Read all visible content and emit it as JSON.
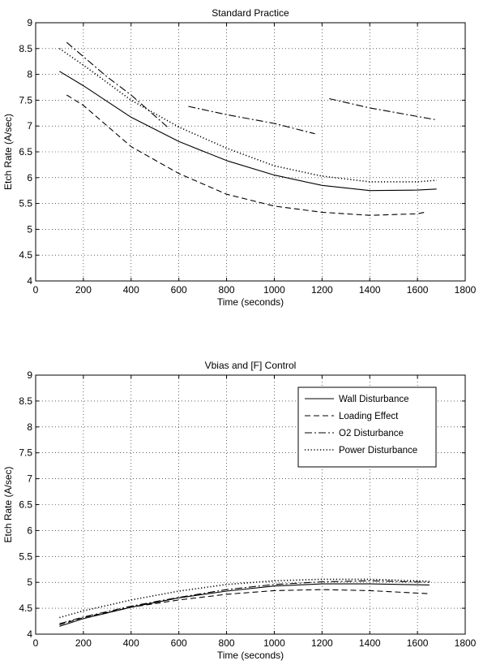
{
  "chart_data": [
    {
      "type": "line",
      "title": "Standard Practice",
      "xlabel": "Time (seconds)",
      "ylabel": "Etch Rate (A/sec)",
      "xlim": [
        0,
        1800
      ],
      "ylim": [
        4,
        9
      ],
      "xticks": [
        "0",
        "200",
        "400",
        "600",
        "800",
        "1000",
        "1200",
        "1400",
        "1600",
        "1800"
      ],
      "yticks": [
        "4",
        "4.5",
        "5",
        "5.5",
        "6",
        "6.5",
        "7",
        "7.5",
        "8",
        "8.5",
        "9"
      ],
      "grid": true,
      "legend": "none",
      "series": [
        {
          "name": "Wall Disturbance",
          "style": "solid",
          "segments": [
            [
              [
                100,
                8.06
              ],
              [
                200,
                7.78
              ],
              [
                400,
                7.17
              ],
              [
                600,
                6.7
              ],
              [
                800,
                6.33
              ],
              [
                1000,
                6.05
              ],
              [
                1200,
                5.85
              ],
              [
                1400,
                5.75
              ],
              [
                1600,
                5.76
              ],
              [
                1680,
                5.78
              ]
            ]
          ]
        },
        {
          "name": "Loading Effect",
          "style": "dashed",
          "segments": [
            [
              [
                130,
                7.6
              ],
              [
                200,
                7.4
              ],
              [
                400,
                6.6
              ],
              [
                600,
                6.08
              ],
              [
                800,
                5.68
              ],
              [
                1000,
                5.45
              ],
              [
                1200,
                5.33
              ],
              [
                1400,
                5.27
              ],
              [
                1600,
                5.3
              ],
              [
                1630,
                5.33
              ]
            ]
          ]
        },
        {
          "name": "O2 Disturbance",
          "style": "dashdot",
          "segments": [
            [
              [
                130,
                8.62
              ],
              [
                300,
                7.95
              ],
              [
                400,
                7.6
              ],
              [
                560,
                6.95
              ]
            ],
            [
              [
                640,
                7.38
              ],
              [
                800,
                7.22
              ],
              [
                1000,
                7.05
              ],
              [
                1170,
                6.85
              ]
            ],
            [
              [
                1230,
                7.53
              ],
              [
                1400,
                7.35
              ],
              [
                1680,
                7.12
              ]
            ]
          ]
        },
        {
          "name": "Power Disturbance",
          "style": "dotted",
          "segments": [
            [
              [
                100,
                8.5
              ],
              [
                200,
                8.18
              ],
              [
                400,
                7.5
              ],
              [
                600,
                6.98
              ],
              [
                800,
                6.57
              ],
              [
                1000,
                6.23
              ],
              [
                1200,
                6.03
              ],
              [
                1400,
                5.92
              ],
              [
                1600,
                5.92
              ],
              [
                1680,
                5.95
              ]
            ]
          ]
        }
      ]
    },
    {
      "type": "line",
      "title": "Vbias and [F] Control",
      "xlabel": "Time (seconds)",
      "ylabel": "Etch Rate (A/sec)",
      "xlim": [
        0,
        1800
      ],
      "ylim": [
        4,
        9
      ],
      "xticks": [
        "0",
        "200",
        "400",
        "600",
        "800",
        "1000",
        "1200",
        "1400",
        "1600",
        "1800"
      ],
      "yticks": [
        "4",
        "4.5",
        "5",
        "5.5",
        "6",
        "6.5",
        "7",
        "7.5",
        "8",
        "8.5",
        "9"
      ],
      "grid": true,
      "legend": "top-right",
      "series": [
        {
          "name": "Wall Disturbance",
          "style": "solid",
          "segments": [
            [
              [
                100,
                4.15
              ],
              [
                200,
                4.3
              ],
              [
                400,
                4.52
              ],
              [
                600,
                4.7
              ],
              [
                800,
                4.83
              ],
              [
                1000,
                4.93
              ],
              [
                1200,
                4.97
              ],
              [
                1400,
                4.97
              ],
              [
                1650,
                4.95
              ]
            ]
          ]
        },
        {
          "name": "Loading Effect",
          "style": "dashed",
          "segments": [
            [
              [
                100,
                4.18
              ],
              [
                200,
                4.32
              ],
              [
                400,
                4.52
              ],
              [
                600,
                4.66
              ],
              [
                800,
                4.77
              ],
              [
                1000,
                4.84
              ],
              [
                1200,
                4.86
              ],
              [
                1400,
                4.84
              ],
              [
                1650,
                4.78
              ]
            ]
          ]
        },
        {
          "name": "O2 Disturbance",
          "style": "dashdot",
          "segments": [
            [
              [
                100,
                4.2
              ],
              [
                200,
                4.33
              ],
              [
                400,
                4.54
              ],
              [
                600,
                4.71
              ],
              [
                800,
                4.86
              ],
              [
                1000,
                4.96
              ],
              [
                1200,
                5.01
              ],
              [
                1400,
                5.03
              ],
              [
                1650,
                5.0
              ]
            ]
          ]
        },
        {
          "name": "Power Disturbance",
          "style": "dotted",
          "segments": [
            [
              [
                100,
                4.32
              ],
              [
                200,
                4.45
              ],
              [
                400,
                4.66
              ],
              [
                600,
                4.83
              ],
              [
                800,
                4.96
              ],
              [
                1000,
                5.03
              ],
              [
                1200,
                5.06
              ],
              [
                1400,
                5.06
              ],
              [
                1650,
                5.02
              ]
            ]
          ]
        }
      ]
    }
  ]
}
